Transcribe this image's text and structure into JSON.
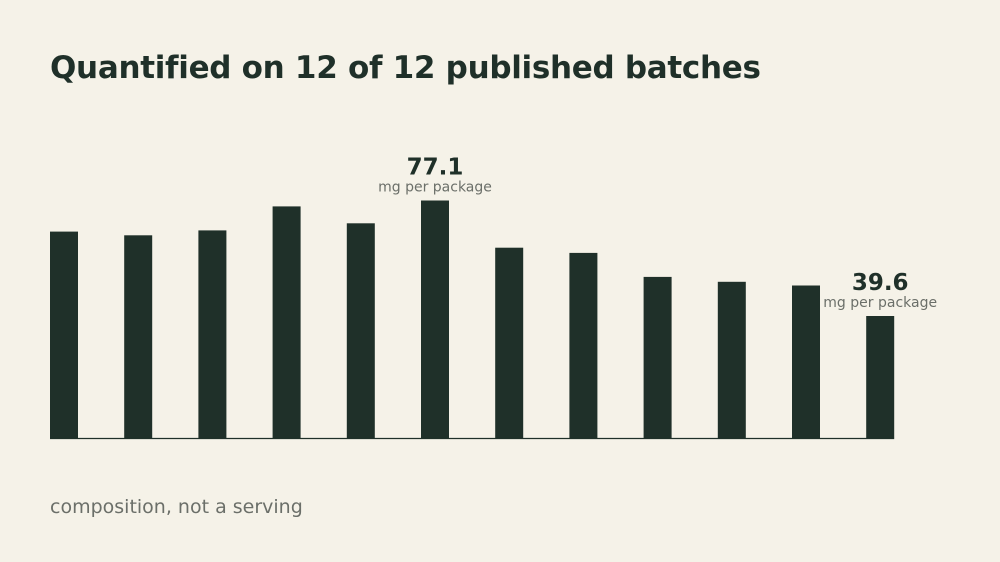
{
  "title": "Quantified on 12 of 12 published batches",
  "footnote": "composition, not a serving",
  "colors": {
    "background": "#f5f2e8",
    "bar": "#1f3029",
    "text": "#1f3029",
    "muted": "#6b6f69"
  },
  "chart_data": {
    "type": "bar",
    "title": "Quantified on 12 of 12 published batches",
    "xlabel": "",
    "ylabel": "",
    "values": [
      67.0,
      65.8,
      67.4,
      75.2,
      69.7,
      77.1,
      61.8,
      60.1,
      52.3,
      50.7,
      49.5,
      39.6
    ],
    "ylim": [
      0,
      100
    ],
    "grid": false,
    "callouts": [
      {
        "index": 5,
        "value": "77.1",
        "unit": "mg per package"
      },
      {
        "index": 11,
        "value": "39.6",
        "unit": "mg per package"
      }
    ]
  }
}
